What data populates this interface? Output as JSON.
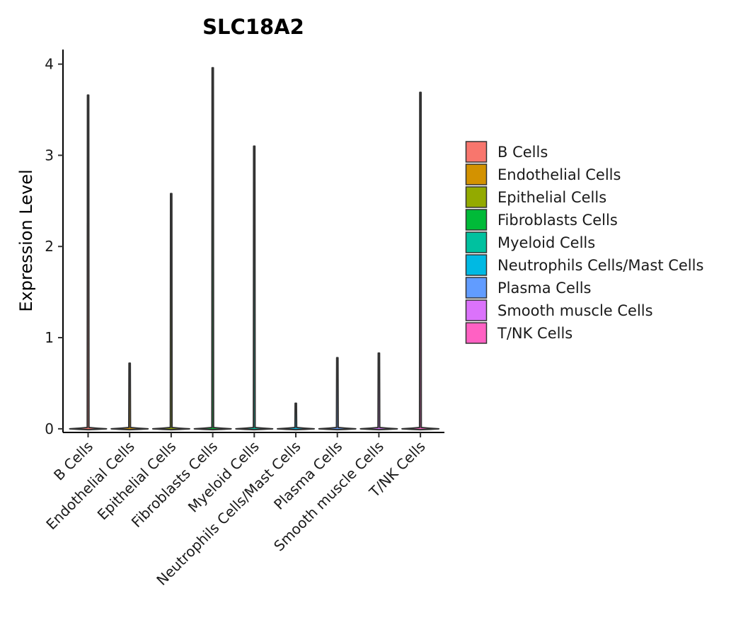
{
  "chart_data": {
    "type": "violin",
    "title": "SLC18A2",
    "xlabel": "",
    "ylabel": "Expression Level",
    "ylim": [
      -0.04,
      4.16
    ],
    "yticks": [
      0,
      1,
      2,
      3,
      4
    ],
    "grid": false,
    "legend_position": "right",
    "categories": [
      "B Cells",
      "Endothelial Cells",
      "Epithelial Cells",
      "Fibroblasts Cells",
      "Myeloid Cells",
      "Neutrophils Cells/Mast Cells",
      "Plasma Cells",
      "Smooth muscle Cells",
      "T/NK Cells"
    ],
    "max_values": [
      3.66,
      0.72,
      2.58,
      3.96,
      3.1,
      0.28,
      0.78,
      0.83,
      3.69
    ],
    "base_value": 0,
    "colors": [
      "#F8766D",
      "#D39200",
      "#93AA00",
      "#00BA38",
      "#00C19F",
      "#00B9E3",
      "#619CFF",
      "#DB72FB",
      "#FF61C3"
    ],
    "legend": [
      "B Cells",
      "Endothelial Cells",
      "Epithelial Cells",
      "Fibroblasts Cells",
      "Myeloid Cells",
      "Neutrophils Cells/Mast Cells",
      "Plasma Cells",
      "Smooth muscle Cells",
      "T/NK Cells"
    ]
  }
}
